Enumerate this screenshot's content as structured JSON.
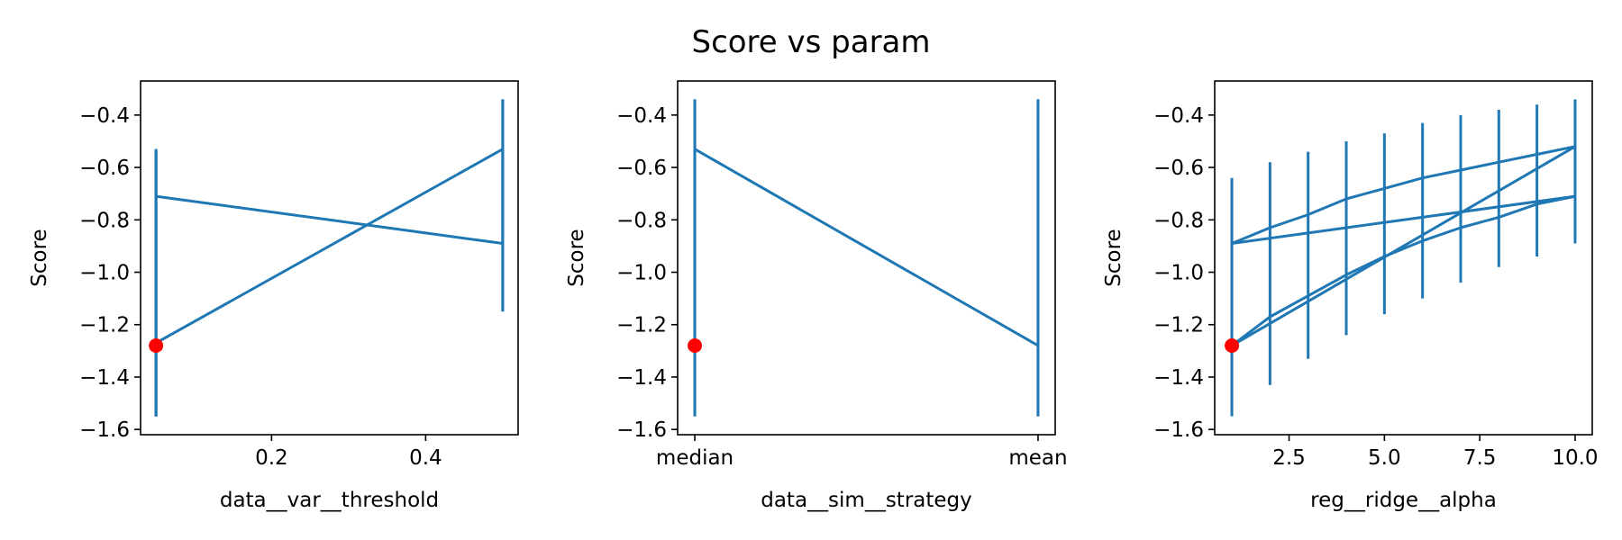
{
  "figure": {
    "title": "Score vs param",
    "colors": {
      "series": "#1f77b4",
      "best_point": "#ff0000",
      "axes": "#000000"
    }
  },
  "chart_data": [
    {
      "type": "line",
      "xlabel": "data__var__threshold",
      "ylabel": "Score",
      "xscale": "linear",
      "xlim": [
        0.03,
        0.52
      ],
      "ylim": [
        -1.62,
        -0.27
      ],
      "x_ticks": [
        0.2,
        0.4
      ],
      "x_tick_labels": [
        "0.2",
        "0.4"
      ],
      "y_ticks": [
        -1.6,
        -1.4,
        -1.2,
        -1.0,
        -0.8,
        -0.6,
        -0.4
      ],
      "y_tick_labels": [
        "−1.6",
        "−1.4",
        "−1.2",
        "−1.0",
        "−0.8",
        "−0.6",
        "−0.4"
      ],
      "grid": false,
      "series": [
        {
          "x": [
            0.05,
            0.05,
            0.5,
            0.5,
            0.05,
            0.05
          ],
          "y": [
            -1.28,
            -1.27,
            -0.53,
            -0.89,
            -0.71,
            -0.71
          ],
          "err_low": [
            -1.55,
            -1.55,
            -1.15,
            -1.15,
            -1.55,
            -1.55
          ],
          "err_high": [
            -0.53,
            -0.53,
            -0.34,
            -0.34,
            -0.53,
            -0.53
          ]
        }
      ],
      "best": {
        "x": 0.05,
        "y": -1.28
      }
    },
    {
      "type": "line",
      "xlabel": "data__sim__strategy",
      "ylabel": "Score",
      "xscale": "categorical",
      "categories": [
        "median",
        "mean"
      ],
      "xlim": [
        -0.05,
        1.05
      ],
      "ylim": [
        -1.62,
        -0.27
      ],
      "x_ticks": [
        0,
        1
      ],
      "x_tick_labels": [
        "median",
        "mean"
      ],
      "y_ticks": [
        -1.6,
        -1.4,
        -1.2,
        -1.0,
        -0.8,
        -0.6,
        -0.4
      ],
      "y_tick_labels": [
        "−1.6",
        "−1.4",
        "−1.2",
        "−1.0",
        "−0.8",
        "−0.6",
        "−0.4"
      ],
      "grid": false,
      "series": [
        {
          "x": [
            0,
            0,
            1,
            1
          ],
          "y": [
            -1.28,
            -0.53,
            -1.28,
            -0.55
          ],
          "err_low": [
            -1.55,
            -1.55,
            -1.55,
            -1.55
          ],
          "err_high": [
            -0.34,
            -0.34,
            -0.34,
            -0.34
          ]
        }
      ],
      "best": {
        "x": 0,
        "y": -1.28
      }
    },
    {
      "type": "line",
      "xlabel": "reg__ridge__alpha",
      "ylabel": "Score",
      "xscale": "linear",
      "xlim": [
        0.55,
        10.45
      ],
      "ylim": [
        -1.62,
        -0.27
      ],
      "x_ticks": [
        2.5,
        5.0,
        7.5,
        10.0
      ],
      "x_tick_labels": [
        "2.5",
        "5.0",
        "7.5",
        "10.0"
      ],
      "y_ticks": [
        -1.6,
        -1.4,
        -1.2,
        -1.0,
        -0.8,
        -0.6,
        -0.4
      ],
      "y_tick_labels": [
        "−1.6",
        "−1.4",
        "−1.2",
        "−1.0",
        "−0.8",
        "−0.6",
        "−0.4"
      ],
      "grid": false,
      "series": [
        {
          "x": [
            1,
            2,
            3,
            4,
            5,
            6,
            7,
            8,
            9,
            10
          ],
          "y": [
            -0.89,
            -0.83,
            -0.78,
            -0.72,
            -0.68,
            -0.64,
            -0.61,
            -0.58,
            -0.55,
            -0.52
          ],
          "err_low": [
            -1.55,
            -1.43,
            -1.33,
            -1.24,
            -1.16,
            -1.1,
            -1.04,
            -0.98,
            -0.94,
            -0.89
          ],
          "err_high": [
            -0.64,
            -0.58,
            -0.54,
            -0.5,
            -0.47,
            -0.43,
            -0.4,
            -0.38,
            -0.36,
            -0.34
          ]
        },
        {
          "x": [
            1,
            10
          ],
          "y": [
            -0.89,
            -0.71
          ]
        },
        {
          "x": [
            1,
            2,
            3,
            4,
            5,
            6,
            7,
            8,
            9,
            10
          ],
          "y": [
            -1.28,
            -1.17,
            -1.09,
            -1.01,
            -0.94,
            -0.88,
            -0.83,
            -0.79,
            -0.74,
            -0.71
          ]
        },
        {
          "x": [
            1,
            10
          ],
          "y": [
            -1.28,
            -0.52
          ]
        }
      ],
      "best": {
        "x": 1,
        "y": -1.28
      }
    }
  ]
}
